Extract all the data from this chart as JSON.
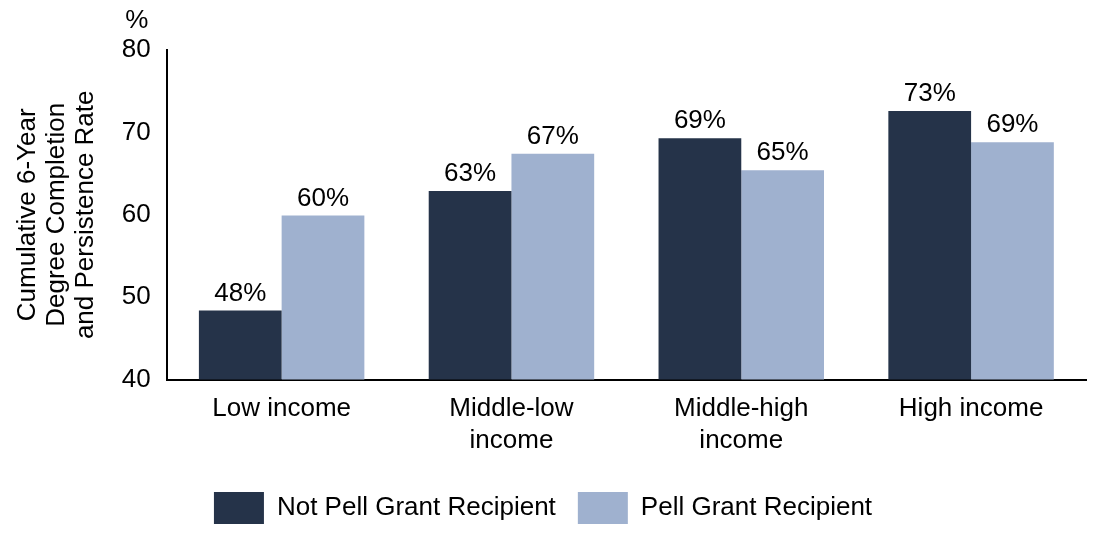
{
  "chart_data": {
    "type": "bar",
    "ylabel": "Cumulative 6-Year Degree Completion and Persistence Rate",
    "annotations": [
      "%"
    ],
    "categories": [
      "Low income",
      "Middle-low income",
      "Middle-high income",
      "High income"
    ],
    "series": [
      {
        "name": "Not Pell Grant Recipient",
        "color": "#253349",
        "values": [
          48.4,
          62.9,
          69.3,
          72.6
        ],
        "value_labels": [
          "48%",
          "63%",
          "69%",
          "73%"
        ]
      },
      {
        "name": "Pell Grant Recipient",
        "color": "#9fb1cf",
        "values": [
          59.9,
          67.4,
          65.4,
          68.8
        ],
        "value_labels": [
          "60%",
          "67%",
          "65%",
          "69%"
        ]
      }
    ],
    "ylim": [
      40,
      80
    ],
    "yticks": [
      40,
      50,
      60,
      70,
      80
    ],
    "grid": false,
    "legend": "bottom"
  }
}
